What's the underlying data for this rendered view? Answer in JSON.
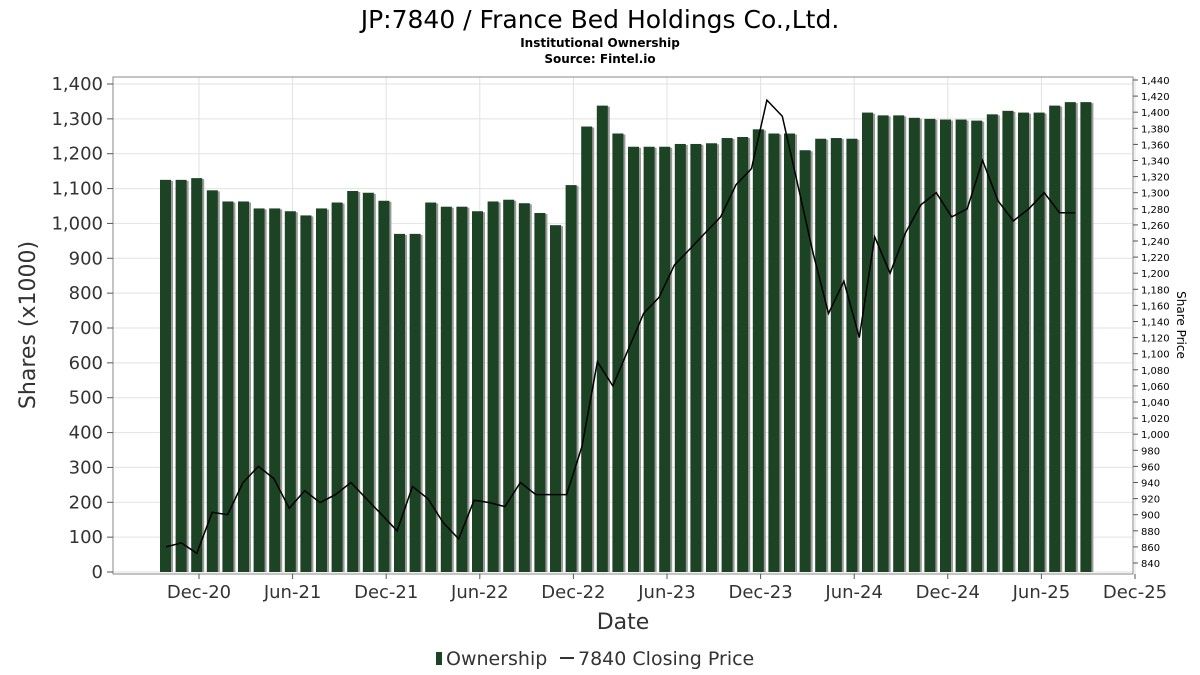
{
  "chart_data": {
    "type": "bar",
    "title": "JP:7840 / France Bed Holdings Co.,Ltd.",
    "subtitle": "Institutional Ownership",
    "source": "Source: Fintel.io",
    "xlabel": "Date",
    "ylabel": "Shares (x1000)",
    "y2label": "Share Price",
    "ylim": [
      0,
      1430
    ],
    "y2lim": [
      830,
      1445
    ],
    "grid": true,
    "legend_position": "bottom-center",
    "yticks": [
      "0",
      "100",
      "200",
      "300",
      "400",
      "500",
      "600",
      "700",
      "800",
      "900",
      "1,000",
      "1,100",
      "1,200",
      "1,300",
      "1,400"
    ],
    "y2ticks": [
      "840",
      "860",
      "880",
      "900",
      "920",
      "940",
      "960",
      "980",
      "1,000",
      "1,020",
      "1,040",
      "1,060",
      "1,080",
      "1,100",
      "1,120",
      "1,140",
      "1,160",
      "1,180",
      "1,200",
      "1,220",
      "1,240",
      "1,260",
      "1,280",
      "1,300",
      "1,320",
      "1,340",
      "1,360",
      "1,380",
      "1,400",
      "1,420",
      "1,440"
    ],
    "xticks": [
      "Dec-20",
      "Jun-21",
      "Dec-21",
      "Jun-22",
      "Dec-22",
      "Jun-23",
      "Dec-23",
      "Jun-24",
      "Dec-24",
      "Jun-25",
      "Dec-25"
    ],
    "series": [
      {
        "name": "Ownership",
        "kind": "bar",
        "color": "#1c4424",
        "values": [
          1125,
          1125,
          1130,
          1095,
          1063,
          1063,
          1043,
          1043,
          1035,
          1023,
          1043,
          1060,
          1093,
          1088,
          1065,
          970,
          970,
          1060,
          1048,
          1048,
          1035,
          1063,
          1068,
          1058,
          1030,
          995,
          1110,
          1278,
          1338,
          1258,
          1220,
          1220,
          1220,
          1228,
          1228,
          1230,
          1245,
          1248,
          1270,
          1258,
          1258,
          1210,
          1243,
          1245,
          1243,
          1318,
          1310,
          1310,
          1303,
          1300,
          1298,
          1298,
          1295,
          1313,
          1323,
          1318,
          1318,
          1338,
          1348,
          1348
        ]
      },
      {
        "name": "7840 Closing Price",
        "kind": "line",
        "color": "#000000",
        "values": [
          860,
          865,
          852,
          903,
          900,
          940,
          960,
          945,
          908,
          930,
          915,
          925,
          940,
          920,
          900,
          880,
          935,
          920,
          890,
          870,
          918,
          915,
          910,
          940,
          925,
          925,
          925,
          985,
          1090,
          1060,
          1105,
          1150,
          1170,
          1210,
          1230,
          1250,
          1270,
          1310,
          1330,
          1415,
          1395,
          1310,
          1225,
          1150,
          1190,
          1120,
          1245,
          1200,
          1250,
          1285,
          1300,
          1270,
          1280,
          1340,
          1290,
          1265,
          1280,
          1300,
          1275,
          1275
        ]
      }
    ]
  }
}
